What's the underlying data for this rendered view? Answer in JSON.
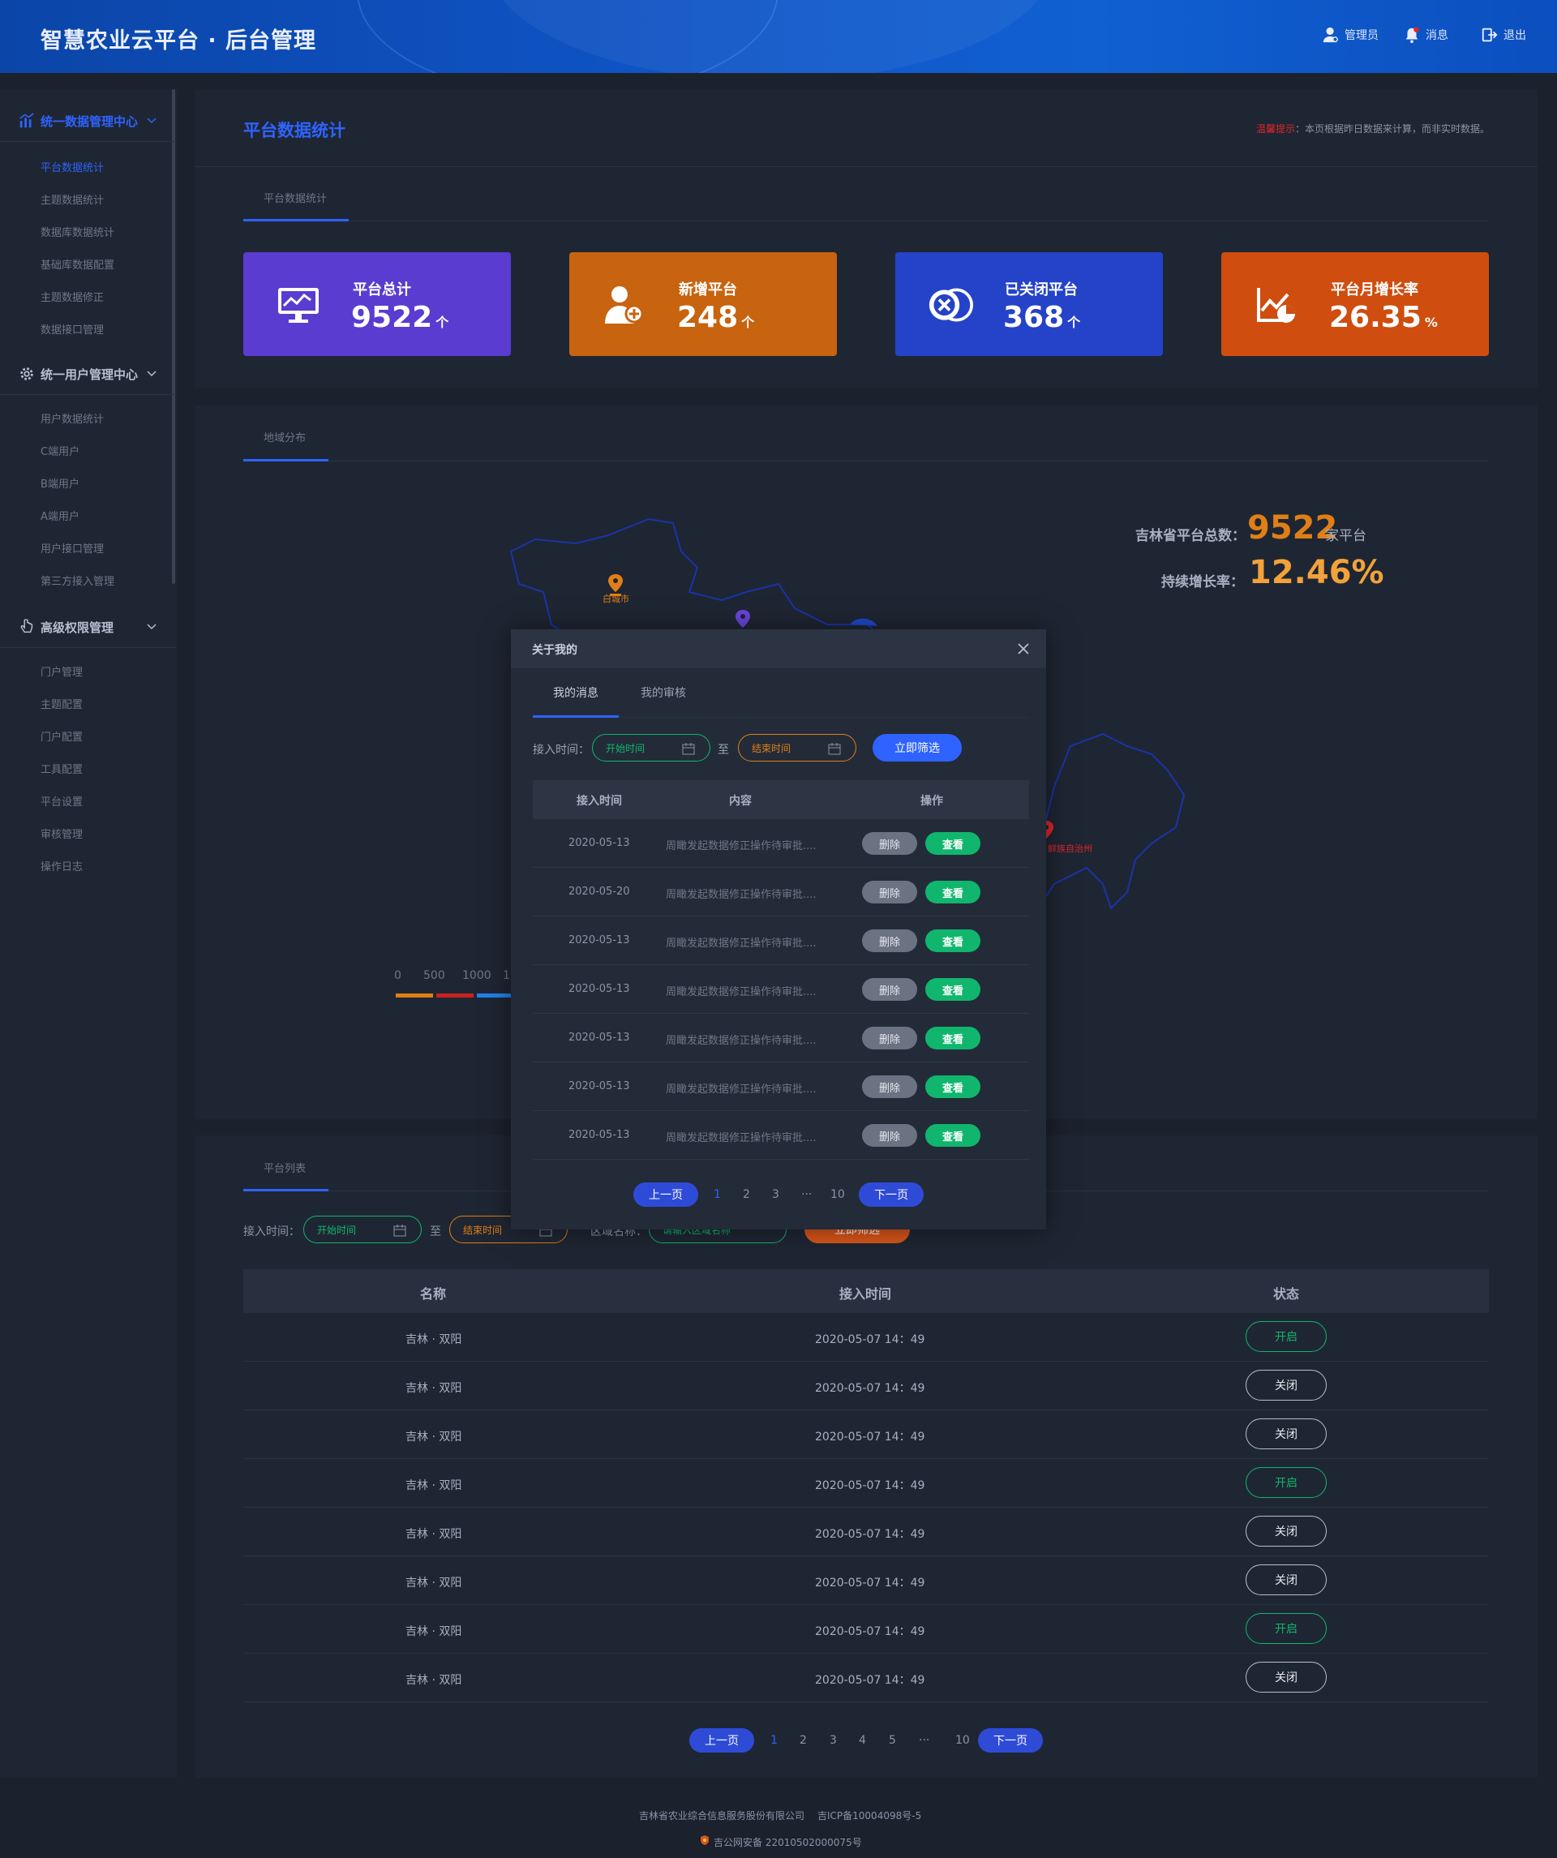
{
  "header": {
    "title": "智慧农业云平台 · 后台管理",
    "admin_label": "管理员",
    "messages_label": "消息",
    "logout_label": "退出"
  },
  "sidebar": {
    "groups": [
      {
        "label": "统一数据管理中心",
        "items": [
          "平台数据统计",
          "主题数据统计",
          "数据库数据统计",
          "基础库数据配置",
          "主题数据修正",
          "数据接口管理"
        ]
      },
      {
        "label": "统一用户管理中心",
        "items": [
          "用户数据统计",
          "C端用户",
          "B端用户",
          "A端用户",
          "用户接口管理",
          "第三方接入管理"
        ]
      },
      {
        "label": "高级权限管理",
        "items": [
          "门户管理",
          "主题配置",
          "门户配置",
          "工具配置",
          "平台设置",
          "审核管理",
          "操作日志"
        ]
      }
    ]
  },
  "page": {
    "title": "平台数据统计",
    "notice_warn": "温馨提示",
    "notice_text": "：本页根据昨日数据来计算，而非实时数据。"
  },
  "stats_section": {
    "tab": "平台数据统计"
  },
  "stats": [
    {
      "label": "平台总计",
      "value": "9522",
      "unit": "个",
      "icon": "monitor-chart-icon",
      "color": "#5a3cd0"
    },
    {
      "label": "新增平台",
      "value": "248",
      "unit": "个",
      "icon": "add-user-icon",
      "color": "#c8630f"
    },
    {
      "label": "已关闭平台",
      "value": "368",
      "unit": "个",
      "icon": "close-circle-icon",
      "color": "#2443c8"
    },
    {
      "label": "平台月增长率",
      "value": "26.35",
      "unit": "%",
      "icon": "growth-chart-icon",
      "color": "#cf4d0e"
    }
  ],
  "map_section": {
    "tab": "地域分布",
    "total_label": "吉林省平台总数：",
    "total_value": "9522",
    "total_unit": "家平台",
    "growth_label": "持续增长率：",
    "growth_value": "12.46%",
    "city_label": "白城市",
    "region_label": "鲜族自治州",
    "legend": [
      "0",
      "500",
      "1000",
      "1"
    ]
  },
  "list_section": {
    "tab": "平台列表",
    "filter_label": "接入时间：",
    "start_placeholder": "开始时间",
    "to_label": "至",
    "end_placeholder": "结束时间",
    "region_label": "区域名称：",
    "region_placeholder": "请输入区域名称",
    "filter_button": "立即筛选",
    "columns": [
      "名称",
      "接入时间",
      "状态"
    ],
    "rows": [
      {
        "name": "吉林 · 双阳",
        "time": "2020-05-07  14：49",
        "status": "开启"
      },
      {
        "name": "吉林 · 双阳",
        "time": "2020-05-07  14：49",
        "status": "关闭"
      },
      {
        "name": "吉林 · 双阳",
        "time": "2020-05-07  14：49",
        "status": "关闭"
      },
      {
        "name": "吉林 · 双阳",
        "time": "2020-05-07  14：49",
        "status": "开启"
      },
      {
        "name": "吉林 · 双阳",
        "time": "2020-05-07  14：49",
        "status": "关闭"
      },
      {
        "name": "吉林 · 双阳",
        "time": "2020-05-07  14：49",
        "status": "关闭"
      },
      {
        "name": "吉林 · 双阳",
        "time": "2020-05-07  14：49",
        "status": "开启"
      },
      {
        "name": "吉林 · 双阳",
        "time": "2020-05-07  14：49",
        "status": "关闭"
      }
    ],
    "pagination": {
      "prev": "上一页",
      "pages": [
        "1",
        "2",
        "3",
        "4",
        "5",
        "···",
        "10"
      ],
      "next": "下一页",
      "current": "1"
    }
  },
  "modal": {
    "title": "关于我的",
    "tabs": [
      "我的消息",
      "我的审核"
    ],
    "filter_label": "接入时间：",
    "start_placeholder": "开始时间",
    "to_label": "至",
    "end_placeholder": "结束时间",
    "filter_button": "立即筛选",
    "columns": [
      "接入时间",
      "内容",
      "操作"
    ],
    "delete_label": "删除",
    "view_label": "查看",
    "rows": [
      {
        "date": "2020-05-13",
        "content": "周瞰发起数据修正操作待审批...."
      },
      {
        "date": "2020-05-20",
        "content": "周瞰发起数据修正操作待审批...."
      },
      {
        "date": "2020-05-13",
        "content": "周瞰发起数据修正操作待审批...."
      },
      {
        "date": "2020-05-13",
        "content": "周瞰发起数据修正操作待审批...."
      },
      {
        "date": "2020-05-13",
        "content": "周瞰发起数据修正操作待审批...."
      },
      {
        "date": "2020-05-13",
        "content": "周瞰发起数据修正操作待审批...."
      },
      {
        "date": "2020-05-13",
        "content": "周瞰发起数据修正操作待审批...."
      }
    ],
    "pagination": {
      "prev": "上一页",
      "pages": [
        "1",
        "2",
        "3",
        "···",
        "10"
      ],
      "next": "下一页",
      "current": "1"
    }
  },
  "footer": {
    "company": "吉林省农业综合信息服务股份有限公司",
    "icp": "吉ICP备10004098号-5",
    "police": "吉公网安备 22010502000075号"
  }
}
